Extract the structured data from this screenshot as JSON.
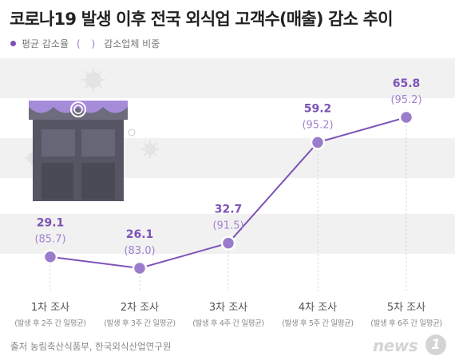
{
  "title": "코로나19 발생 이후 전국 외식업 고객수(매출) 감소 추이",
  "legend": {
    "avg_label": "평균 감소율",
    "paren_symbol": "( )",
    "share_label": "감소업체 비중"
  },
  "source": "출처 농림축산식품부, 한국외식산업연구원",
  "logo": {
    "text": "news",
    "badge": "1"
  },
  "colors": {
    "line": "#7d53b8",
    "marker": "#9b7ccc",
    "paren_value": "#a283d0",
    "band": "#f1f1f1"
  },
  "chart_data": {
    "type": "line",
    "categories": [
      "1차 조사",
      "2차 조사",
      "3차 조사",
      "4차 조사",
      "5차 조사"
    ],
    "subcategories": [
      "(발생 후 2주 간 일평균)",
      "(발생 후 3주 간 일평균)",
      "(발생 후 4주 간 일평균)",
      "(발생 후 5주 간 일평균)",
      "(발생 후 6주 간 일평균)"
    ],
    "series": [
      {
        "name": "평균 감소율",
        "values": [
          29.1,
          26.1,
          32.7,
          59.2,
          65.8
        ]
      },
      {
        "name": "감소업체 비중",
        "values": [
          85.7,
          83.0,
          91.5,
          95.2,
          95.2
        ]
      }
    ],
    "value_labels": [
      "29.1",
      "26.1",
      "32.7",
      "59.2",
      "65.8"
    ],
    "paren_labels": [
      "(85.7)",
      "(83.0)",
      "(91.5)",
      "(95.2)",
      "(95.2)"
    ],
    "ylim": [
      20,
      70
    ],
    "grid": "alternating bands",
    "legend_position": "top-left"
  }
}
